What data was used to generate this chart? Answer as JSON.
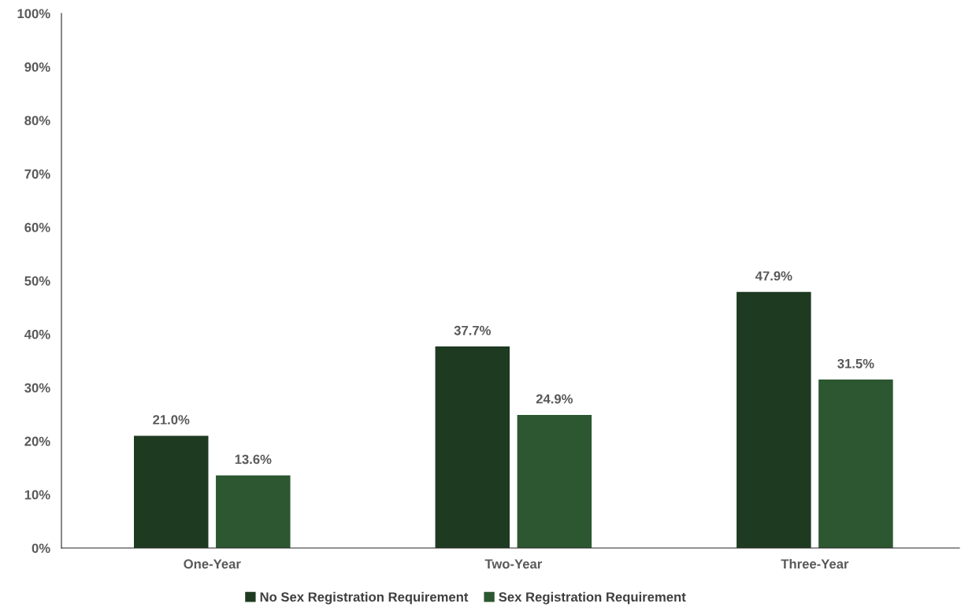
{
  "chart_data": {
    "type": "bar",
    "categories": [
      "One-Year",
      "Two-Year",
      "Three-Year"
    ],
    "series": [
      {
        "name": "No Sex Registration Requirement",
        "color": "#1e3a21",
        "values": [
          21.0,
          37.7,
          47.9
        ]
      },
      {
        "name": "Sex Registration Requirement",
        "color": "#2c5731",
        "values": [
          13.6,
          24.9,
          31.5
        ]
      }
    ],
    "ylim": [
      0,
      100
    ],
    "yticks": [
      {
        "value": 0,
        "label": "0%"
      },
      {
        "value": 10,
        "label": "10%"
      },
      {
        "value": 20,
        "label": "20%"
      },
      {
        "value": 30,
        "label": "30%"
      },
      {
        "value": 40,
        "label": "40%"
      },
      {
        "value": 50,
        "label": "50%"
      },
      {
        "value": 60,
        "label": "60%"
      },
      {
        "value": 70,
        "label": "70%"
      },
      {
        "value": 80,
        "label": "80%"
      },
      {
        "value": 90,
        "label": "90%"
      },
      {
        "value": 100,
        "label": "100%"
      }
    ],
    "value_labels": [
      [
        "21.0%",
        "37.7%",
        "47.9%"
      ],
      [
        "13.6%",
        "24.9%",
        "31.5%"
      ]
    ],
    "grid": false,
    "legend": "bottom"
  }
}
